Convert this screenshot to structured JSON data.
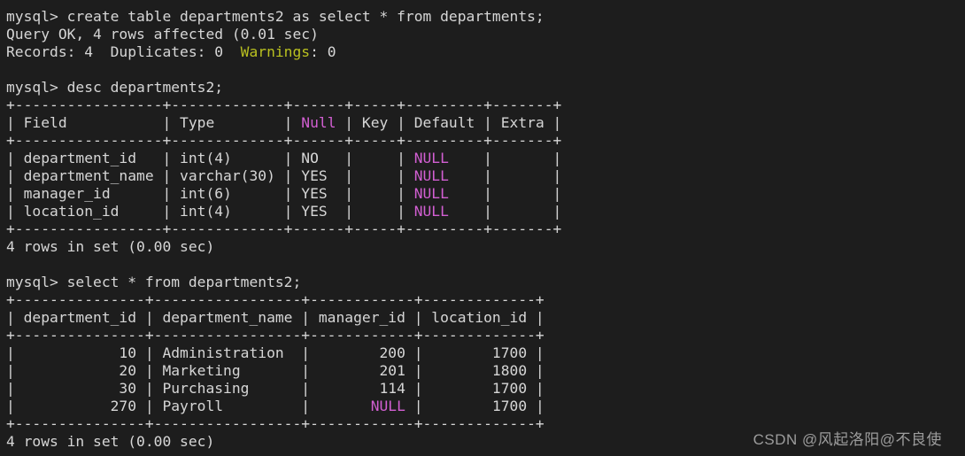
{
  "colors": {
    "background": "#1d1d1d",
    "foreground": "#d6d6d6",
    "yellow": "#b9c020",
    "magenta": "#d25fd2",
    "watermark_gray": "#9c9c9c"
  },
  "watermark": {
    "text": "CSDN @风起洛阳@不良使"
  },
  "terminal": {
    "lines": [
      {
        "segments": [
          {
            "text": "mysql> create table departments2 as select * from departments;",
            "color": "foreground"
          }
        ]
      },
      {
        "segments": [
          {
            "text": "Query OK, 4 rows affected (0.01 sec)",
            "color": "foreground"
          }
        ]
      },
      {
        "segments": [
          {
            "text": "Records: 4  Duplicates: 0  ",
            "color": "foreground"
          },
          {
            "text": "Warnings",
            "color": "yellow"
          },
          {
            "text": ": 0",
            "color": "foreground"
          }
        ]
      },
      {
        "segments": []
      },
      {
        "segments": [
          {
            "text": "mysql> desc departments2;",
            "color": "foreground"
          }
        ]
      },
      {
        "segments": [
          {
            "text": "+-----------------+-------------+------+-----+---------+-------+",
            "color": "foreground"
          }
        ]
      },
      {
        "segments": [
          {
            "text": "| Field           | Type        | ",
            "color": "foreground"
          },
          {
            "text": "Null",
            "color": "magenta"
          },
          {
            "text": " | Key | Default | Extra |",
            "color": "foreground"
          }
        ]
      },
      {
        "segments": [
          {
            "text": "+-----------------+-------------+------+-----+---------+-------+",
            "color": "foreground"
          }
        ]
      },
      {
        "segments": [
          {
            "text": "| department_id   | int(4)      | NO   |     | ",
            "color": "foreground"
          },
          {
            "text": "NULL",
            "color": "magenta"
          },
          {
            "text": "    |       |",
            "color": "foreground"
          }
        ]
      },
      {
        "segments": [
          {
            "text": "| department_name | varchar(30) | YES  |     | ",
            "color": "foreground"
          },
          {
            "text": "NULL",
            "color": "magenta"
          },
          {
            "text": "    |       |",
            "color": "foreground"
          }
        ]
      },
      {
        "segments": [
          {
            "text": "| manager_id      | int(6)      | YES  |     | ",
            "color": "foreground"
          },
          {
            "text": "NULL",
            "color": "magenta"
          },
          {
            "text": "    |       |",
            "color": "foreground"
          }
        ]
      },
      {
        "segments": [
          {
            "text": "| location_id     | int(4)      | YES  |     | ",
            "color": "foreground"
          },
          {
            "text": "NULL",
            "color": "magenta"
          },
          {
            "text": "    |       |",
            "color": "foreground"
          }
        ]
      },
      {
        "segments": [
          {
            "text": "+-----------------+-------------+------+-----+---------+-------+",
            "color": "foreground"
          }
        ]
      },
      {
        "segments": [
          {
            "text": "4 rows in set (0.00 sec)",
            "color": "foreground"
          }
        ]
      },
      {
        "segments": []
      },
      {
        "segments": [
          {
            "text": "mysql> select * from departments2;",
            "color": "foreground"
          }
        ]
      },
      {
        "segments": [
          {
            "text": "+---------------+-----------------+------------+-------------+",
            "color": "foreground"
          }
        ]
      },
      {
        "segments": [
          {
            "text": "| department_id | department_name | manager_id | location_id |",
            "color": "foreground"
          }
        ]
      },
      {
        "segments": [
          {
            "text": "+---------------+-----------------+------------+-------------+",
            "color": "foreground"
          }
        ]
      },
      {
        "segments": [
          {
            "text": "|            10 | Administration  |        200 |        1700 |",
            "color": "foreground"
          }
        ]
      },
      {
        "segments": [
          {
            "text": "|            20 | Marketing       |        201 |        1800 |",
            "color": "foreground"
          }
        ]
      },
      {
        "segments": [
          {
            "text": "|            30 | Purchasing      |        114 |        1700 |",
            "color": "foreground"
          }
        ]
      },
      {
        "segments": [
          {
            "text": "|           270 | Payroll         |       ",
            "color": "foreground"
          },
          {
            "text": "NULL",
            "color": "magenta"
          },
          {
            "text": " |        1700 |",
            "color": "foreground"
          }
        ]
      },
      {
        "segments": [
          {
            "text": "+---------------+-----------------+------------+-------------+",
            "color": "foreground"
          }
        ]
      },
      {
        "segments": [
          {
            "text": "4 rows in set (0.00 sec)",
            "color": "foreground"
          }
        ]
      }
    ]
  }
}
